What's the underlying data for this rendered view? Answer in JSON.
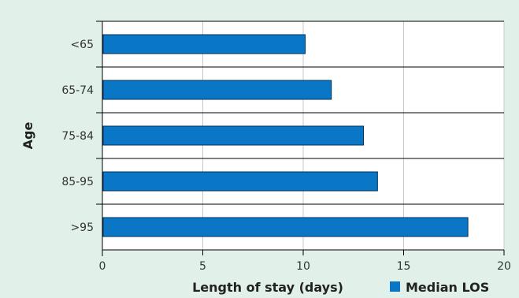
{
  "chart_data": {
    "type": "bar",
    "orientation": "horizontal",
    "categories": [
      "<65",
      "65-74",
      "75-84",
      "85-95",
      ">95"
    ],
    "series": [
      {
        "name": "Median LOS",
        "values": [
          10.1,
          11.4,
          13.0,
          13.7,
          18.2
        ]
      }
    ],
    "xlabel": "Length of stay (days)",
    "ylabel": "Age",
    "xlim": [
      0,
      20
    ],
    "xticks": [
      0,
      5,
      10,
      15,
      20
    ],
    "grid": "vertical",
    "legend": "bottom-right",
    "colors": {
      "bar_fill": "#0a76c6",
      "bar_stroke": "#05325a",
      "background": "#e2f0ea",
      "plot_background": "#ffffff",
      "grid": "#c8c8c8"
    }
  }
}
